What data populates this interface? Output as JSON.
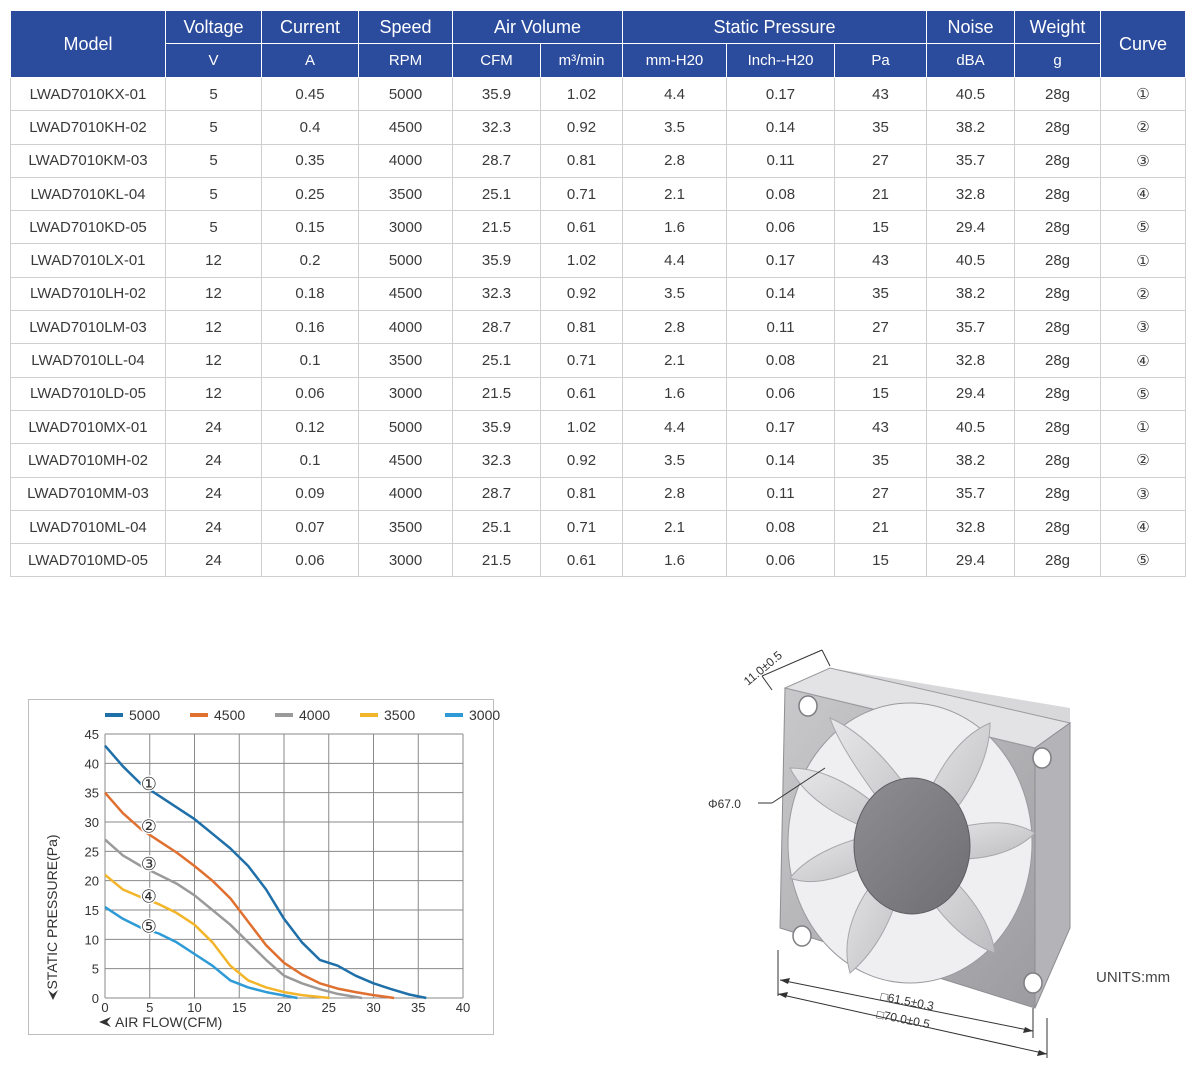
{
  "table": {
    "header_top": {
      "model": "Model",
      "voltage": "Voltage",
      "current": "Current",
      "speed": "Speed",
      "air_volume": "Air Volume",
      "static_pressure": "Static Pressure",
      "noise": "Noise",
      "weight": "Weight",
      "curve": "Curve"
    },
    "header_units": [
      "V",
      "A",
      "RPM",
      "CFM",
      "m³/min",
      "mm-H20",
      "Inch--H20",
      "Pa",
      "dBA",
      "g"
    ],
    "rows": [
      [
        "LWAD7010KX-01",
        "5",
        "0.45",
        "5000",
        "35.9",
        "1.02",
        "4.4",
        "0.17",
        "43",
        "40.5",
        "28g",
        "①"
      ],
      [
        "LWAD7010KH-02",
        "5",
        "0.4",
        "4500",
        "32.3",
        "0.92",
        "3.5",
        "0.14",
        "35",
        "38.2",
        "28g",
        "②"
      ],
      [
        "LWAD7010KM-03",
        "5",
        "0.35",
        "4000",
        "28.7",
        "0.81",
        "2.8",
        "0.11",
        "27",
        "35.7",
        "28g",
        "③"
      ],
      [
        "LWAD7010KL-04",
        "5",
        "0.25",
        "3500",
        "25.1",
        "0.71",
        "2.1",
        "0.08",
        "21",
        "32.8",
        "28g",
        "④"
      ],
      [
        "LWAD7010KD-05",
        "5",
        "0.15",
        "3000",
        "21.5",
        "0.61",
        "1.6",
        "0.06",
        "15",
        "29.4",
        "28g",
        "⑤"
      ],
      [
        "LWAD7010LX-01",
        "12",
        "0.2",
        "5000",
        "35.9",
        "1.02",
        "4.4",
        "0.17",
        "43",
        "40.5",
        "28g",
        "①"
      ],
      [
        "LWAD7010LH-02",
        "12",
        "0.18",
        "4500",
        "32.3",
        "0.92",
        "3.5",
        "0.14",
        "35",
        "38.2",
        "28g",
        "②"
      ],
      [
        "LWAD7010LM-03",
        "12",
        "0.16",
        "4000",
        "28.7",
        "0.81",
        "2.8",
        "0.11",
        "27",
        "35.7",
        "28g",
        "③"
      ],
      [
        "LWAD7010LL-04",
        "12",
        "0.1",
        "3500",
        "25.1",
        "0.71",
        "2.1",
        "0.08",
        "21",
        "32.8",
        "28g",
        "④"
      ],
      [
        "LWAD7010LD-05",
        "12",
        "0.06",
        "3000",
        "21.5",
        "0.61",
        "1.6",
        "0.06",
        "15",
        "29.4",
        "28g",
        "⑤"
      ],
      [
        "LWAD7010MX-01",
        "24",
        "0.12",
        "5000",
        "35.9",
        "1.02",
        "4.4",
        "0.17",
        "43",
        "40.5",
        "28g",
        "①"
      ],
      [
        "LWAD7010MH-02",
        "24",
        "0.1",
        "4500",
        "32.3",
        "0.92",
        "3.5",
        "0.14",
        "35",
        "38.2",
        "28g",
        "②"
      ],
      [
        "LWAD7010MM-03",
        "24",
        "0.09",
        "4000",
        "28.7",
        "0.81",
        "2.8",
        "0.11",
        "27",
        "35.7",
        "28g",
        "③"
      ],
      [
        "LWAD7010ML-04",
        "24",
        "0.07",
        "3500",
        "25.1",
        "0.71",
        "2.1",
        "0.08",
        "21",
        "32.8",
        "28g",
        "④"
      ],
      [
        "LWAD7010MD-05",
        "24",
        "0.06",
        "3000",
        "21.5",
        "0.61",
        "1.6",
        "0.06",
        "15",
        "29.4",
        "28g",
        "⑤"
      ]
    ]
  },
  "chart_data": {
    "type": "line",
    "title": "",
    "xlabel": "AIR FLOW(CFM)",
    "ylabel": "STATIC PRESSURE(Pa)",
    "xlim": [
      0,
      40
    ],
    "ylim": [
      0,
      45
    ],
    "xticks": [
      0,
      5,
      10,
      15,
      20,
      25,
      30,
      35,
      40
    ],
    "yticks": [
      0,
      5,
      10,
      15,
      20,
      25,
      30,
      35,
      40,
      45
    ],
    "grid": true,
    "legend_position": "top",
    "series": [
      {
        "name": "5000",
        "marker": "①",
        "color": "#1f6fa8",
        "x": [
          0,
          2,
          4,
          6,
          8,
          10,
          12,
          14,
          16,
          18,
          20,
          22,
          24,
          26,
          28,
          30,
          32,
          34,
          35.9
        ],
        "y": [
          43,
          39.5,
          36.5,
          34.5,
          32.5,
          30.5,
          28,
          25.5,
          22.5,
          18.5,
          13.5,
          9.5,
          6.5,
          5.5,
          3.8,
          2.5,
          1.5,
          0.6,
          0
        ]
      },
      {
        "name": "4500",
        "marker": "②",
        "color": "#e07030",
        "x": [
          0,
          2,
          4,
          6,
          8,
          10,
          12,
          14,
          16,
          18,
          20,
          22,
          24,
          26,
          28,
          30,
          32.3
        ],
        "y": [
          35,
          31.5,
          28.8,
          26.8,
          24.8,
          22.5,
          20,
          17,
          13,
          9,
          6,
          4,
          2.5,
          1.6,
          1,
          0.5,
          0
        ]
      },
      {
        "name": "4000",
        "marker": "③",
        "color": "#9a9a9a",
        "x": [
          0,
          2,
          4,
          6,
          8,
          10,
          12,
          14,
          16,
          18,
          20,
          22,
          24,
          26,
          28.7
        ],
        "y": [
          27,
          24.3,
          22.5,
          21,
          19.5,
          17.5,
          15,
          12.5,
          9.5,
          6.5,
          3.8,
          2.5,
          1.5,
          0.7,
          0
        ]
      },
      {
        "name": "3500",
        "marker": "④",
        "color": "#f3b52a",
        "x": [
          0,
          2,
          4,
          6,
          8,
          10,
          12,
          14,
          16,
          18,
          20,
          22,
          25.1
        ],
        "y": [
          21,
          18.5,
          17.2,
          16,
          14.5,
          12.5,
          9.5,
          5.5,
          3,
          1.8,
          1,
          0.5,
          0
        ]
      },
      {
        "name": "3000",
        "marker": "⑤",
        "color": "#2f9bd6",
        "x": [
          0,
          2,
          4,
          6,
          8,
          10,
          12,
          14,
          16,
          18,
          21.5
        ],
        "y": [
          15.5,
          13.5,
          12,
          11,
          9.5,
          7.5,
          5.5,
          3,
          1.8,
          1,
          0
        ]
      }
    ]
  },
  "drawing": {
    "dim_height": "11.0±0.5",
    "dim_diameter": "Φ67.0",
    "dim_hole_pitch": "□61.5±0.3",
    "dim_outer": "□70.0±0.5",
    "units": "UNITS:mm"
  }
}
